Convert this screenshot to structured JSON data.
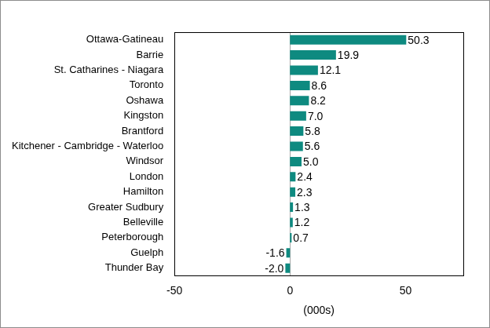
{
  "chart_data": {
    "type": "bar",
    "orientation": "horizontal",
    "categories": [
      "Ottawa-Gatineau",
      "Barrie",
      "St. Catharines - Niagara",
      "Toronto",
      "Oshawa",
      "Kingston",
      "Brantford",
      "Kitchener - Cambridge - Waterloo",
      "Windsor",
      "London",
      "Hamilton",
      "Greater Sudbury",
      "Belleville",
      "Peterborough",
      "Guelph",
      "Thunder Bay"
    ],
    "values": [
      50.3,
      19.9,
      12.1,
      8.6,
      8.2,
      7.0,
      5.8,
      5.6,
      5.0,
      2.4,
      2.3,
      1.3,
      1.2,
      0.7,
      -1.6,
      -2.0
    ],
    "value_labels": [
      "50.3",
      "19.9",
      "12.1",
      "8.6",
      "8.2",
      "7.0",
      "5.8",
      "5.6",
      "5.0",
      "2.4",
      "2.3",
      "1.3",
      "1.2",
      "0.7",
      "-1.6",
      "-2.0"
    ],
    "color": "#0e8a80",
    "x_label": "(000s)",
    "xlim": [
      -50,
      75
    ],
    "xticks": [
      -50,
      0,
      50
    ],
    "grid": false,
    "data_labels": true
  }
}
